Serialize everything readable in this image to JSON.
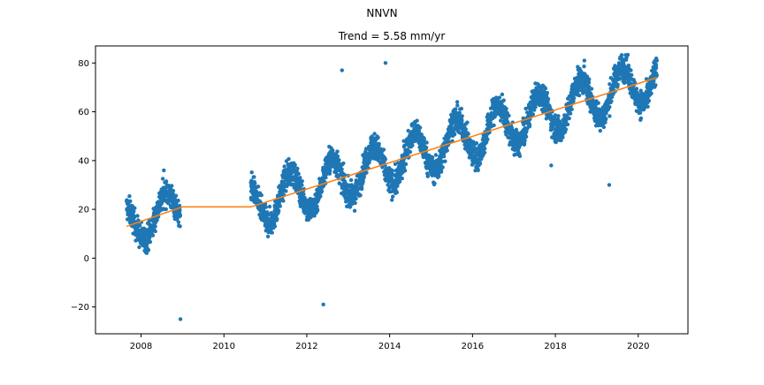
{
  "figure": {
    "suptitle": "NNVN"
  },
  "chart_data": {
    "type": "scatter",
    "title": "Trend = 5.58 mm/yr",
    "xlabel": "",
    "ylabel": "",
    "xlim": [
      2006.9,
      2021.2
    ],
    "ylim": [
      -31,
      87
    ],
    "xticks": [
      2008,
      2010,
      2012,
      2014,
      2016,
      2018,
      2020
    ],
    "xtick_labels": [
      "2008",
      "2010",
      "2012",
      "2014",
      "2016",
      "2018",
      "2020"
    ],
    "yticks": [
      -20,
      0,
      20,
      40,
      60,
      80
    ],
    "ytick_labels": [
      "−20",
      "0",
      "20",
      "40",
      "60",
      "80"
    ],
    "grid": false,
    "colors": {
      "points": "#1f77b4",
      "trend": "#ff7f0e"
    },
    "series": [
      {
        "kind": "points",
        "segments": [
          {
            "t0": 2007.65,
            "t1": 2008.95,
            "trend": [
              13,
              21
            ],
            "amp": 8,
            "phase": 0.35,
            "noise": 4.5
          },
          {
            "t0": 2010.65,
            "t1": 2020.45,
            "trend": [
              21,
              74
            ],
            "amp": 9,
            "phase": 0.35,
            "noise": 4.5
          }
        ],
        "outliers": [
          {
            "x": 2008.95,
            "y": -25
          },
          {
            "x": 2012.4,
            "y": -19
          },
          {
            "x": 2013.9,
            "y": 80
          },
          {
            "x": 2012.85,
            "y": 77
          },
          {
            "x": 2008.55,
            "y": 36
          },
          {
            "x": 2018.7,
            "y": 81
          },
          {
            "x": 2020.45,
            "y": 81
          },
          {
            "x": 2019.3,
            "y": 30
          },
          {
            "x": 2017.9,
            "y": 38
          }
        ]
      },
      {
        "kind": "trend",
        "x": [
          2007.65,
          2009.0,
          2010.65,
          2020.45
        ],
        "y": [
          13,
          21,
          21,
          74
        ]
      }
    ]
  }
}
